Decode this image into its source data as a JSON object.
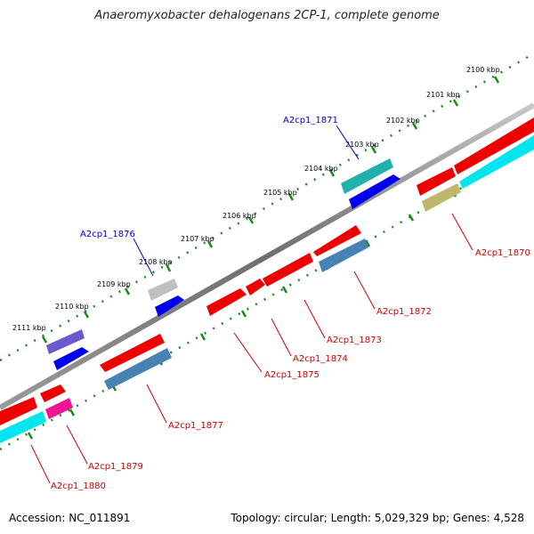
{
  "title": "Anaeromyxobacter dehalogenans 2CP-1, complete genome",
  "footer": {
    "accession": "Accession: NC_011891",
    "summary": "Topology: circular; Length: 5,029,329 bp; Genes: 4,528"
  },
  "colors": {
    "backbone": "#808080",
    "tick": "#1a8a1a",
    "label_above": "#0000cc",
    "label_below": "#cc0000"
  },
  "kbp_labels": [
    "2100 kbp",
    "2101 kbp",
    "2102 kbp",
    "2103 kbp",
    "2104 kbp",
    "2105 kbp",
    "2106 kbp",
    "2107 kbp",
    "2108 kbp",
    "2109 kbp",
    "2110 kbp",
    "2111 kbp"
  ],
  "gene_labels_above": [
    "A2cp1_1871",
    "A2cp1_1876"
  ],
  "gene_labels_below": [
    "A2cp1_1870",
    "A2cp1_1872",
    "A2cp1_1873",
    "A2cp1_1874",
    "A2cp1_1875",
    "A2cp1_1877",
    "A2cp1_1879",
    "A2cp1_1880"
  ],
  "feature_colors": [
    "red",
    "cyan",
    "blue",
    "teal",
    "olive",
    "slate-blue",
    "purple",
    "silver",
    "pink"
  ]
}
